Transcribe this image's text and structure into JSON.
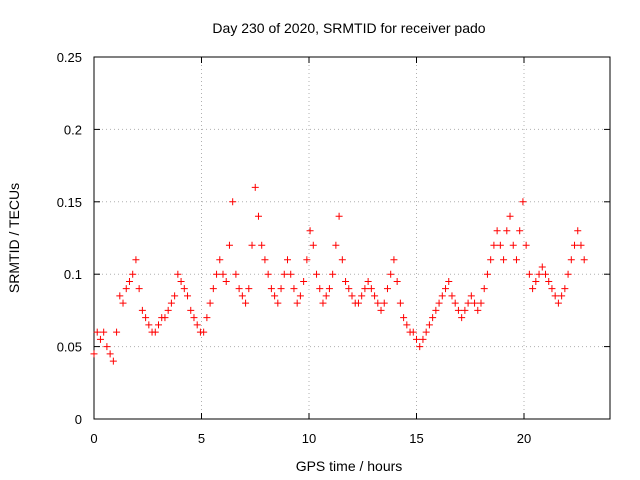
{
  "chart_data": {
    "type": "scatter",
    "title": "Day 230 of 2020, SRMTID for receiver pado",
    "xlabel": "GPS time / hours",
    "ylabel": "SRMTID / TECUs",
    "xlim": [
      0,
      24
    ],
    "ylim": [
      0,
      0.25
    ],
    "x_ticks": [
      0,
      5,
      10,
      15,
      20
    ],
    "x_tick_labels": [
      "0",
      "5",
      "10",
      "15",
      "20"
    ],
    "y_ticks": [
      0,
      0.05,
      0.1,
      0.15,
      0.2,
      0.25
    ],
    "y_tick_labels": [
      "0",
      "0.05",
      "0.1",
      "0.15",
      "0.2",
      "0.25"
    ],
    "grid": true,
    "marker": "+",
    "color": "#ff0000",
    "series": [
      {
        "name": "SRMTID",
        "x": [
          0.0,
          0.15,
          0.3,
          0.45,
          0.6,
          0.75,
          0.9,
          1.05,
          1.2,
          1.35,
          1.5,
          1.65,
          1.8,
          1.95,
          2.1,
          2.25,
          2.4,
          2.55,
          2.7,
          2.85,
          3.0,
          3.15,
          3.3,
          3.45,
          3.6,
          3.75,
          3.9,
          4.05,
          4.2,
          4.35,
          4.5,
          4.65,
          4.8,
          4.95,
          5.1,
          5.25,
          5.4,
          5.55,
          5.7,
          5.85,
          6.0,
          6.15,
          6.3,
          6.45,
          6.6,
          6.75,
          6.9,
          7.05,
          7.2,
          7.35,
          7.5,
          7.65,
          7.8,
          7.95,
          8.1,
          8.25,
          8.4,
          8.55,
          8.7,
          8.85,
          9.0,
          9.15,
          9.3,
          9.45,
          9.6,
          9.75,
          9.9,
          10.05,
          10.2,
          10.35,
          10.5,
          10.65,
          10.8,
          10.95,
          11.1,
          11.25,
          11.4,
          11.55,
          11.7,
          11.85,
          12.0,
          12.15,
          12.3,
          12.45,
          12.6,
          12.75,
          12.9,
          13.05,
          13.2,
          13.35,
          13.5,
          13.65,
          13.8,
          13.95,
          14.1,
          14.25,
          14.4,
          14.55,
          14.7,
          14.85,
          15.0,
          15.15,
          15.3,
          15.45,
          15.6,
          15.75,
          15.9,
          16.05,
          16.2,
          16.35,
          16.5,
          16.65,
          16.8,
          16.95,
          17.1,
          17.25,
          17.4,
          17.55,
          17.7,
          17.85,
          18.0,
          18.15,
          18.3,
          18.45,
          18.6,
          18.75,
          18.9,
          19.05,
          19.2,
          19.35,
          19.5,
          19.65,
          19.8,
          19.95,
          20.1,
          20.25,
          20.4,
          20.55,
          20.7,
          20.85,
          21.0,
          21.15,
          21.3,
          21.45,
          21.6,
          21.75,
          21.9,
          22.05,
          22.2,
          22.35,
          22.5,
          22.65,
          22.8
        ],
        "y": [
          0.045,
          0.06,
          0.055,
          0.06,
          0.05,
          0.045,
          0.04,
          0.06,
          0.085,
          0.08,
          0.09,
          0.095,
          0.1,
          0.11,
          0.09,
          0.075,
          0.07,
          0.065,
          0.06,
          0.06,
          0.065,
          0.07,
          0.07,
          0.075,
          0.08,
          0.085,
          0.1,
          0.095,
          0.09,
          0.085,
          0.075,
          0.07,
          0.065,
          0.06,
          0.06,
          0.07,
          0.08,
          0.09,
          0.1,
          0.11,
          0.1,
          0.095,
          0.12,
          0.15,
          0.1,
          0.09,
          0.085,
          0.08,
          0.09,
          0.12,
          0.16,
          0.14,
          0.12,
          0.11,
          0.1,
          0.09,
          0.085,
          0.08,
          0.09,
          0.1,
          0.11,
          0.1,
          0.09,
          0.08,
          0.085,
          0.095,
          0.11,
          0.13,
          0.12,
          0.1,
          0.09,
          0.08,
          0.085,
          0.09,
          0.1,
          0.12,
          0.14,
          0.11,
          0.095,
          0.09,
          0.085,
          0.08,
          0.08,
          0.085,
          0.09,
          0.095,
          0.09,
          0.085,
          0.08,
          0.075,
          0.08,
          0.09,
          0.1,
          0.11,
          0.095,
          0.08,
          0.07,
          0.065,
          0.06,
          0.06,
          0.055,
          0.05,
          0.055,
          0.06,
          0.065,
          0.07,
          0.075,
          0.08,
          0.085,
          0.09,
          0.095,
          0.085,
          0.08,
          0.075,
          0.07,
          0.075,
          0.08,
          0.085,
          0.08,
          0.075,
          0.08,
          0.09,
          0.1,
          0.11,
          0.12,
          0.13,
          0.12,
          0.11,
          0.13,
          0.14,
          0.12,
          0.11,
          0.13,
          0.15,
          0.12,
          0.1,
          0.09,
          0.095,
          0.1,
          0.105,
          0.1,
          0.095,
          0.09,
          0.085,
          0.08,
          0.085,
          0.09,
          0.1,
          0.11,
          0.12,
          0.13,
          0.12,
          0.11
        ]
      }
    ]
  }
}
